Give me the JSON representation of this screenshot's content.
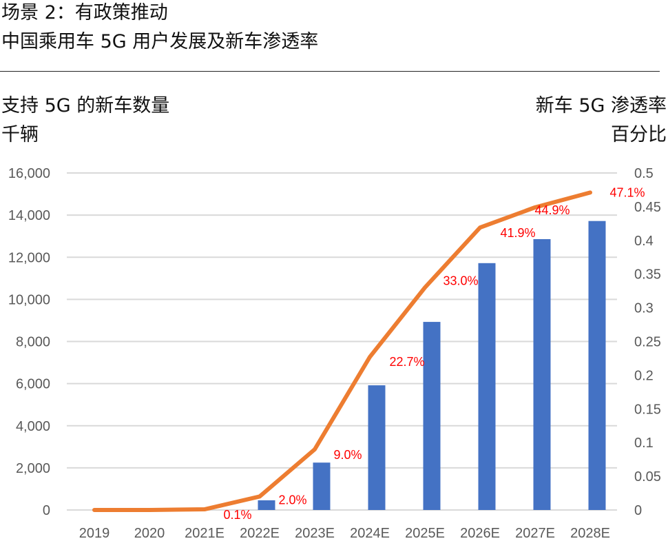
{
  "header": {
    "title_line1": "场景 2：有政策推动",
    "title_line2": "中国乘用车 5G 用户发展及新车渗透率"
  },
  "chart_data": {
    "type": "bar",
    "combo": "bar+line",
    "title": "中国乘用车 5G 用户发展及新车渗透率",
    "categories": [
      "2019",
      "2020",
      "2021E",
      "2022E",
      "2023E",
      "2024E",
      "2025E",
      "2026E",
      "2027E",
      "2028E"
    ],
    "left_axis": {
      "title_line1": "支持 5G 的新车数量",
      "title_line2": "千辆",
      "ylim": [
        0,
        16000
      ],
      "ticks": [
        0,
        2000,
        4000,
        6000,
        8000,
        10000,
        12000,
        14000,
        16000
      ],
      "tick_labels": [
        "0",
        "2,000",
        "4,000",
        "6,000",
        "8,000",
        "10,000",
        "12,000",
        "14,000",
        "16,000"
      ]
    },
    "right_axis": {
      "title_line1": "新车 5G 渗透率",
      "title_line2": "百分比",
      "ylim": [
        0,
        0.5
      ],
      "ticks": [
        0,
        0.05,
        0.1,
        0.15,
        0.2,
        0.25,
        0.3,
        0.35,
        0.4,
        0.45,
        0.5
      ],
      "tick_labels": [
        "0",
        "0.05",
        "0.1",
        "0.15",
        "0.2",
        "0.25",
        "0.3",
        "0.35",
        "0.4",
        "0.45",
        "0.5"
      ]
    },
    "grid": true,
    "legend": "none",
    "series": [
      {
        "name": "支持 5G 的新车数量（千辆）",
        "type": "bar",
        "axis": "left",
        "color": "#4472c4",
        "values": [
          0,
          0,
          0,
          460,
          2250,
          5920,
          8930,
          11720,
          12860,
          13720
        ]
      },
      {
        "name": "新车 5G 渗透率",
        "type": "line",
        "axis": "right",
        "color": "#ed7d31",
        "values": [
          0,
          0,
          0.001,
          0.02,
          0.09,
          0.227,
          0.33,
          0.419,
          0.449,
          0.471
        ],
        "data_labels": [
          "",
          "",
          "0.1%",
          "2.0%",
          "9.0%",
          "22.7%",
          "33.0%",
          "41.9%",
          "44.9%",
          "47.1%"
        ],
        "data_label_color": "#ff0000"
      }
    ]
  },
  "colors": {
    "bar": "#4472c4",
    "line": "#ed7d31",
    "label": "#ff0000",
    "grid": "#d9d9d9",
    "tick": "#595959"
  }
}
